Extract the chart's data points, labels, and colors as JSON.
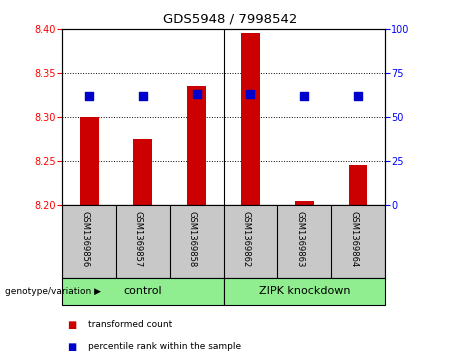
{
  "title": "GDS5948 / 7998542",
  "samples": [
    "GSM1369856",
    "GSM1369857",
    "GSM1369858",
    "GSM1369862",
    "GSM1369863",
    "GSM1369864"
  ],
  "transformed_counts": [
    8.3,
    8.275,
    8.335,
    8.395,
    8.205,
    8.245
  ],
  "percentile_ranks": [
    62,
    62,
    63,
    63,
    62,
    62
  ],
  "ylim_left": [
    8.2,
    8.4
  ],
  "ylim_right": [
    0,
    100
  ],
  "yticks_left": [
    8.2,
    8.25,
    8.3,
    8.35,
    8.4
  ],
  "yticks_right": [
    0,
    25,
    50,
    75,
    100
  ],
  "bar_color": "#CC0000",
  "dot_color": "#0000CC",
  "bar_width": 0.35,
  "dot_size": 30,
  "background_color": "#FFFFFF",
  "genotype_label": "genotype/variation",
  "legend_bar_label": "transformed count",
  "legend_dot_label": "percentile rank within the sample",
  "group_box_color": "#90EE90",
  "sample_box_color": "#C8C8C8",
  "group_labels": [
    "control",
    "ZIPK knockdown"
  ],
  "group_ranges": [
    [
      0,
      2
    ],
    [
      3,
      5
    ]
  ]
}
